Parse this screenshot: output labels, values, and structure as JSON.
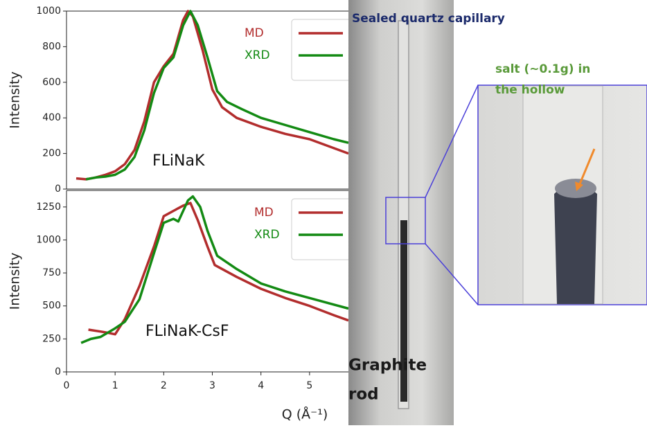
{
  "chart_data": [
    {
      "type": "line",
      "annotation": "FLiNaK",
      "ylabel": "Intensity",
      "xlim": [
        0,
        5.8
      ],
      "ylim": [
        0,
        1000
      ],
      "yticks": [
        0,
        200,
        400,
        600,
        800,
        1000
      ],
      "legend": "upper right",
      "series": [
        {
          "name": "MD",
          "color": "#b22d2d",
          "x": [
            0.2,
            0.4,
            0.6,
            0.8,
            1.0,
            1.2,
            1.4,
            1.6,
            1.8,
            2.0,
            2.2,
            2.4,
            2.5,
            2.6,
            2.8,
            3.0,
            3.2,
            3.5,
            4.0,
            4.5,
            5.0,
            5.5,
            5.8
          ],
          "values": [
            60,
            55,
            65,
            80,
            100,
            140,
            220,
            380,
            600,
            690,
            760,
            950,
            1000,
            970,
            780,
            560,
            460,
            400,
            350,
            310,
            280,
            230,
            200
          ]
        },
        {
          "name": "XRD",
          "color": "#138a13",
          "x": [
            0.4,
            0.6,
            0.8,
            1.0,
            1.2,
            1.4,
            1.6,
            1.8,
            2.0,
            2.2,
            2.4,
            2.55,
            2.7,
            2.9,
            3.1,
            3.3,
            3.6,
            4.0,
            4.5,
            5.0,
            5.5,
            5.8
          ],
          "values": [
            55,
            65,
            70,
            80,
            110,
            180,
            330,
            540,
            680,
            740,
            920,
            1000,
            920,
            740,
            550,
            490,
            450,
            400,
            360,
            320,
            280,
            260
          ]
        }
      ]
    },
    {
      "type": "line",
      "annotation": "FLiNaK-CsF",
      "ylabel": "Intensity",
      "xlabel": "Q (Å⁻¹)",
      "xlim": [
        0,
        5.8
      ],
      "ylim": [
        0,
        1375
      ],
      "xticks": [
        0,
        1,
        2,
        3,
        4,
        5
      ],
      "yticks": [
        0,
        250,
        500,
        750,
        1000,
        1250
      ],
      "legend": "upper right",
      "series": [
        {
          "name": "MD",
          "color": "#b22d2d",
          "x": [
            0.45,
            0.8,
            1.0,
            1.2,
            1.5,
            1.8,
            2.0,
            2.2,
            2.4,
            2.55,
            2.7,
            2.9,
            3.05,
            3.5,
            4.0,
            4.5,
            5.0,
            5.5,
            5.8
          ],
          "values": [
            320,
            300,
            285,
            400,
            650,
            950,
            1180,
            1220,
            1260,
            1280,
            1150,
            950,
            810,
            720,
            630,
            560,
            500,
            430,
            390
          ]
        },
        {
          "name": "XRD",
          "color": "#138a13",
          "x": [
            0.3,
            0.5,
            0.7,
            1.0,
            1.2,
            1.5,
            1.8,
            2.0,
            2.2,
            2.3,
            2.5,
            2.6,
            2.75,
            2.9,
            3.1,
            3.5,
            4.0,
            4.5,
            5.0,
            5.5,
            5.8
          ],
          "values": [
            220,
            250,
            265,
            330,
            380,
            550,
            900,
            1130,
            1160,
            1140,
            1300,
            1330,
            1250,
            1070,
            880,
            780,
            670,
            610,
            560,
            510,
            480
          ]
        }
      ]
    }
  ],
  "photo": {
    "top_label": "Sealed quartz capillary",
    "salt_label": [
      "salt (~0.1g) in",
      "the hollow"
    ],
    "rod_label": [
      "Graphite",
      "rod"
    ]
  }
}
